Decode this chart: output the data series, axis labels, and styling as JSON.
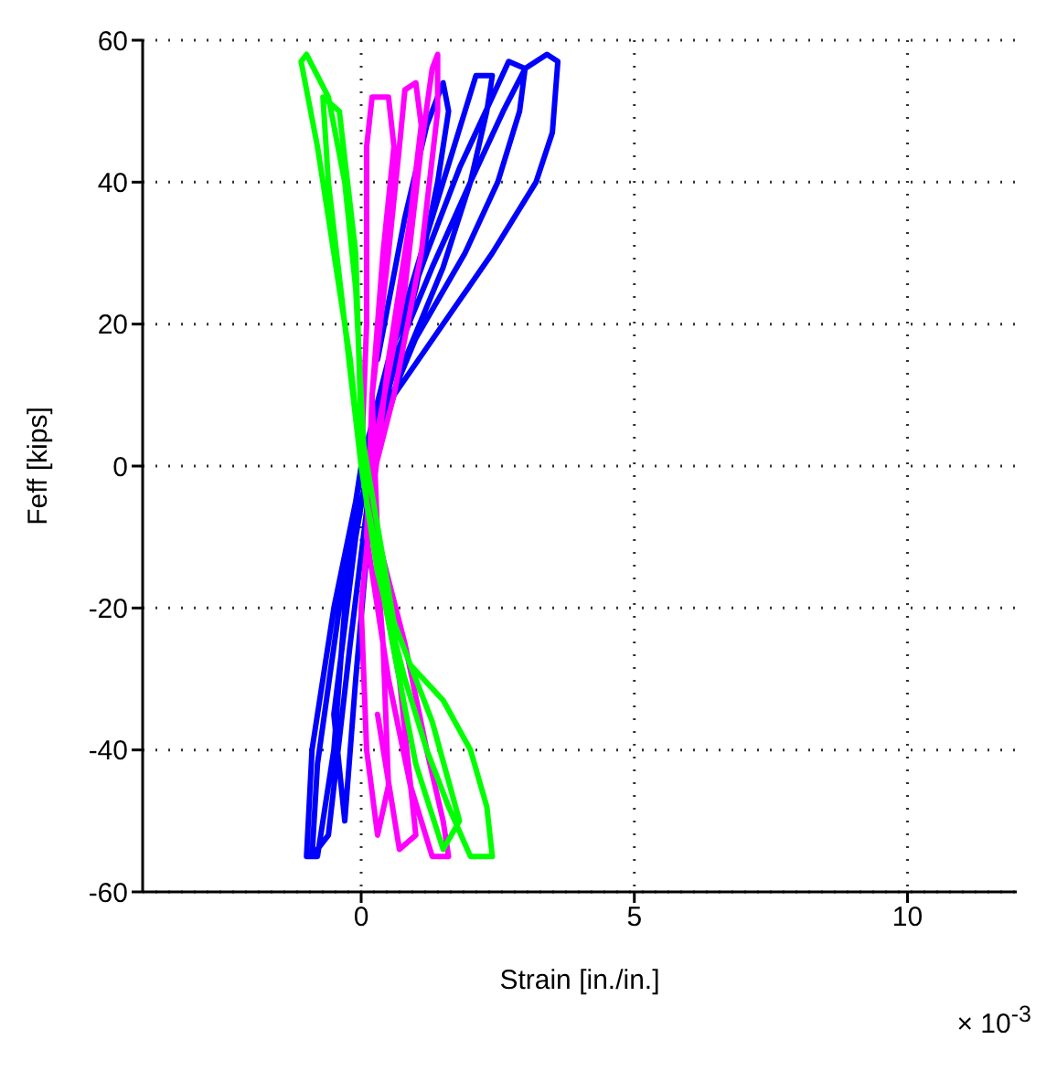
{
  "chart_data": {
    "type": "line",
    "xlabel": "Strain [in./in.]",
    "ylabel": "Feff [kips]",
    "annotations": [
      "× 10$^{-3}$"
    ],
    "xlim": [
      -4,
      12
    ],
    "xticks": [
      0,
      5,
      10
    ],
    "ylim": [
      -60,
      60
    ],
    "yticks": [
      -60,
      -40,
      -20,
      0,
      20,
      40,
      60
    ],
    "grid": true,
    "legend": false,
    "marker": "none",
    "line_style": "solid",
    "series": [
      {
        "color": "#0000ff",
        "x": [
          0,
          0.6,
          1.5,
          2.4,
          3.2,
          3.5,
          3.6,
          3.4,
          3.0,
          2.6,
          2.0,
          1.3,
          0.6,
          0.1,
          -0.1,
          -0.5,
          -0.9,
          -1.0,
          -0.8,
          -0.5,
          -0.3,
          0,
          0.3,
          1.0,
          1.9,
          2.5,
          2.9,
          3.0,
          2.7,
          2.4,
          1.8,
          1.2,
          0.5,
          0,
          -0.4,
          -0.8,
          -0.9,
          -0.6,
          -0.2,
          0.2,
          0.8,
          1.5,
          2.0,
          2.3,
          2.4,
          2.1,
          1.7,
          1.1,
          0.4,
          -0.1,
          -0.5,
          -0.3,
          -0.1,
          0.3,
          1.0,
          1.4,
          1.6,
          1.5,
          1.2,
          0.8,
          0.3
        ],
        "values": [
          0,
          10,
          20,
          30,
          40,
          47,
          57,
          58,
          56,
          50,
          40,
          28,
          15,
          3,
          -5,
          -20,
          -40,
          -55,
          -55,
          -40,
          -20,
          -5,
          5,
          18,
          30,
          40,
          50,
          56,
          57,
          52,
          42,
          30,
          15,
          0,
          -20,
          -42,
          -55,
          -52,
          -25,
          0,
          15,
          28,
          40,
          50,
          55,
          55,
          45,
          30,
          12,
          -10,
          -35,
          -50,
          -30,
          5,
          25,
          40,
          50,
          54,
          48,
          35,
          15
        ]
      },
      {
        "color": "#ff00ff",
        "x": [
          0,
          0.1,
          0.1,
          0.2,
          0.5,
          0.6,
          0.4,
          0.2,
          0.3,
          0.8,
          1.2,
          1.5,
          1.6,
          1.3,
          0.9,
          0.5,
          0.1,
          0.2,
          0.5,
          0.7,
          0.8,
          1.0,
          1.1,
          0.9,
          0.5,
          0.2,
          0.4,
          0.5,
          0.3,
          0.1,
          0,
          0.3,
          0.8,
          1.1,
          1.3,
          1.4,
          1.4,
          1.1,
          0.6,
          0.1,
          0.7,
          1.0,
          0.7,
          0.3
        ],
        "values": [
          0,
          20,
          45,
          52,
          52,
          45,
          30,
          10,
          -10,
          -25,
          -40,
          -50,
          -55,
          -55,
          -45,
          -30,
          -10,
          10,
          30,
          45,
          53,
          54,
          48,
          35,
          15,
          -5,
          -25,
          -45,
          -52,
          -40,
          -20,
          5,
          25,
          45,
          56,
          58,
          50,
          30,
          10,
          -5,
          -30,
          -52,
          -54,
          -35
        ]
      },
      {
        "color": "#00ff00",
        "x": [
          0,
          -0.2,
          -0.5,
          -0.8,
          -1.1,
          -1.0,
          -0.6,
          -0.3,
          -0.1,
          0,
          0.1,
          0.5,
          0.9,
          1.5,
          2.0,
          2.3,
          2.4,
          2.0,
          1.6,
          1.2,
          0.8,
          0.3,
          0,
          -0.3,
          -0.6,
          -0.7,
          -0.4,
          -0.1,
          0,
          0.6,
          1.3,
          1.8,
          1.5,
          1.0,
          0.4
        ],
        "values": [
          0,
          15,
          30,
          45,
          57,
          58,
          52,
          40,
          25,
          10,
          -5,
          -20,
          -28,
          -33,
          -40,
          -48,
          -55,
          -55,
          -48,
          -40,
          -30,
          -15,
          0,
          20,
          40,
          52,
          50,
          30,
          5,
          -22,
          -36,
          -50,
          -54,
          -42,
          -18
        ]
      }
    ]
  }
}
